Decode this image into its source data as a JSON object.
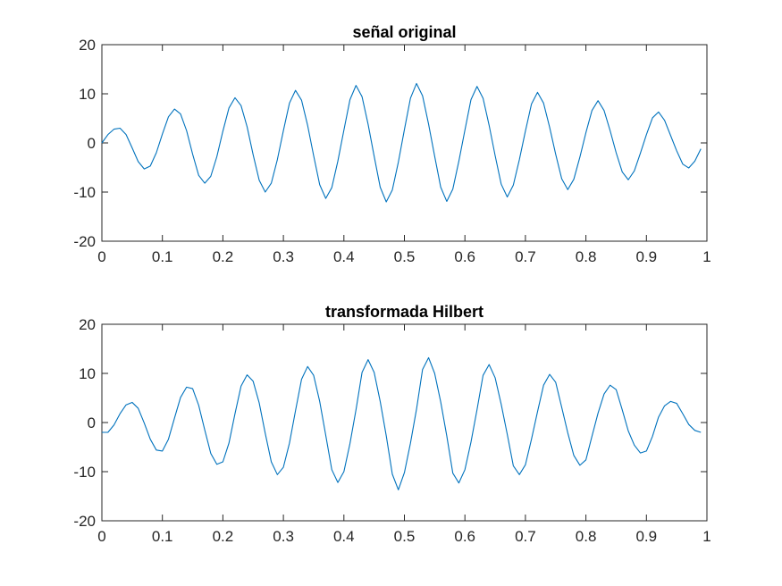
{
  "chart_data": [
    {
      "type": "line",
      "title": "señal original",
      "xlabel": "",
      "ylabel": "",
      "xlim": [
        0,
        1
      ],
      "ylim": [
        -20,
        20
      ],
      "xticks": [
        0,
        0.1,
        0.2,
        0.3,
        0.4,
        0.5,
        0.6,
        0.7,
        0.8,
        0.9,
        1
      ],
      "xtick_labels": [
        "0",
        "0.1",
        "0.2",
        "0.3",
        "0.4",
        "0.5",
        "0.6",
        "0.7",
        "0.8",
        "0.9",
        "1"
      ],
      "yticks": [
        -20,
        -10,
        0,
        10,
        20
      ],
      "ytick_labels": [
        "-20",
        "-10",
        "0",
        "10",
        "20"
      ],
      "grid": false,
      "color": "#0072BD",
      "x": [
        0,
        0.01,
        0.02,
        0.03,
        0.04,
        0.05,
        0.06,
        0.07,
        0.08,
        0.09,
        0.1,
        0.11,
        0.12,
        0.13,
        0.14,
        0.15,
        0.16,
        0.17,
        0.18,
        0.19,
        0.2,
        0.21,
        0.22,
        0.23,
        0.24,
        0.25,
        0.26,
        0.27,
        0.28,
        0.29,
        0.3,
        0.31,
        0.32,
        0.33,
        0.34,
        0.35,
        0.36,
        0.37,
        0.38,
        0.39,
        0.4,
        0.41,
        0.42,
        0.43,
        0.44,
        0.45,
        0.46,
        0.47,
        0.48,
        0.49,
        0.5,
        0.51,
        0.52,
        0.53,
        0.54,
        0.55,
        0.56,
        0.57,
        0.58,
        0.59,
        0.6,
        0.61,
        0.62,
        0.63,
        0.64,
        0.65,
        0.66,
        0.67,
        0.68,
        0.69,
        0.7,
        0.71,
        0.72,
        0.73,
        0.74,
        0.75,
        0.76,
        0.77,
        0.78,
        0.79,
        0.8,
        0.81,
        0.82,
        0.83,
        0.84,
        0.85,
        0.86,
        0.87,
        0.88,
        0.89,
        0.9,
        0.91,
        0.92,
        0.93,
        0.94,
        0.95,
        0.96,
        0.97,
        0.98,
        0.99
      ],
      "y": [
        0,
        1.7,
        2.8,
        3,
        1.7,
        -1,
        -3.8,
        -5.3,
        -4.7,
        -2,
        1.8,
        5.3,
        6.9,
        5.9,
        2.5,
        -2.3,
        -6.6,
        -8.2,
        -6.8,
        -2.8,
        2.4,
        7.1,
        9.2,
        7.6,
        3.3,
        -2.4,
        -7.6,
        -10,
        -8.2,
        -3.4,
        2.5,
        8.1,
        10.7,
        8.7,
        3.6,
        -2.6,
        -8.5,
        -11.3,
        -9.1,
        -3.7,
        2.6,
        8.8,
        11.7,
        9.4,
        3.8,
        -2.7,
        -9,
        -12,
        -9.6,
        -3.9,
        2.7,
        9.1,
        12.1,
        9.6,
        3.8,
        -2.7,
        -9,
        -11.9,
        -9.4,
        -3.7,
        2.6,
        8.8,
        11.5,
        9.1,
        3.6,
        -2.6,
        -8.4,
        -11,
        -8.6,
        -3.4,
        2.4,
        7.9,
        10.3,
        8.1,
        3.2,
        -2.3,
        -7.3,
        -9.5,
        -7.4,
        -2.9,
        2.1,
        6.6,
        8.6,
        6.6,
        2.5,
        -2,
        -5.9,
        -7.5,
        -5.7,
        -2.1,
        1.7,
        5.1,
        6.3,
        4.6,
        1.5,
        -1.6,
        -4.3,
        -5.1,
        -3.7,
        -1.2
      ]
    },
    {
      "type": "line",
      "title": "transformada  Hilbert",
      "xlabel": "",
      "ylabel": "",
      "xlim": [
        0,
        1
      ],
      "ylim": [
        -20,
        20
      ],
      "xticks": [
        0,
        0.1,
        0.2,
        0.3,
        0.4,
        0.5,
        0.6,
        0.7,
        0.8,
        0.9,
        1
      ],
      "xtick_labels": [
        "0",
        "0.1",
        "0.2",
        "0.3",
        "0.4",
        "0.5",
        "0.6",
        "0.7",
        "0.8",
        "0.9",
        "1"
      ],
      "yticks": [
        -20,
        -10,
        0,
        10,
        20
      ],
      "ytick_labels": [
        "-20",
        "-10",
        "0",
        "10",
        "20"
      ],
      "grid": false,
      "color": "#0072BD",
      "x": [
        0,
        0.01,
        0.02,
        0.03,
        0.04,
        0.05,
        0.06,
        0.07,
        0.08,
        0.09,
        0.1,
        0.11,
        0.12,
        0.13,
        0.14,
        0.15,
        0.16,
        0.17,
        0.18,
        0.19,
        0.2,
        0.21,
        0.22,
        0.23,
        0.24,
        0.25,
        0.26,
        0.27,
        0.28,
        0.29,
        0.3,
        0.31,
        0.32,
        0.33,
        0.34,
        0.35,
        0.36,
        0.37,
        0.38,
        0.39,
        0.4,
        0.41,
        0.42,
        0.43,
        0.44,
        0.45,
        0.46,
        0.47,
        0.48,
        0.49,
        0.5,
        0.51,
        0.52,
        0.53,
        0.54,
        0.55,
        0.56,
        0.57,
        0.58,
        0.59,
        0.6,
        0.61,
        0.62,
        0.63,
        0.64,
        0.65,
        0.66,
        0.67,
        0.68,
        0.69,
        0.7,
        0.71,
        0.72,
        0.73,
        0.74,
        0.75,
        0.76,
        0.77,
        0.78,
        0.79,
        0.8,
        0.81,
        0.82,
        0.83,
        0.84,
        0.85,
        0.86,
        0.87,
        0.88,
        0.89,
        0.9,
        0.91,
        0.92,
        0.93,
        0.94,
        0.95,
        0.96,
        0.97,
        0.98,
        0.99
      ],
      "y": [
        -2,
        -2,
        -0.5,
        1.8,
        3.6,
        4.1,
        2.9,
        -0.1,
        -3.4,
        -5.6,
        -5.8,
        -3.4,
        0.9,
        5.1,
        7.2,
        6.9,
        3.5,
        -1.5,
        -6.3,
        -8.5,
        -8,
        -4.2,
        1.8,
        7.4,
        9.7,
        8.4,
        4,
        -2.2,
        -8,
        -10.6,
        -9.1,
        -4.2,
        2.4,
        8.8,
        11.4,
        9.6,
        4.3,
        -2.6,
        -9.6,
        -12.2,
        -10,
        -4.3,
        2.6,
        10.2,
        12.8,
        10.2,
        4.3,
        -2.7,
        -10.5,
        -13.7,
        -10.2,
        -4.2,
        2.7,
        10.8,
        13.2,
        10,
        4.2,
        -2.7,
        -10.3,
        -12.3,
        -9.6,
        -4,
        2.6,
        9.6,
        11.8,
        9.1,
        3.7,
        -2.4,
        -8.8,
        -10.6,
        -8.6,
        -3.4,
        2.2,
        7.6,
        9.8,
        8.2,
        3.1,
        -2.1,
        -6.7,
        -8.7,
        -7.6,
        -2.8,
        1.9,
        5.8,
        7.6,
        6.7,
        2.6,
        -1.7,
        -4.6,
        -6.2,
        -5.8,
        -2.8,
        1.1,
        3.4,
        4.3,
        3.9,
        1.8,
        -0.4,
        -1.6,
        -2
      ]
    }
  ]
}
